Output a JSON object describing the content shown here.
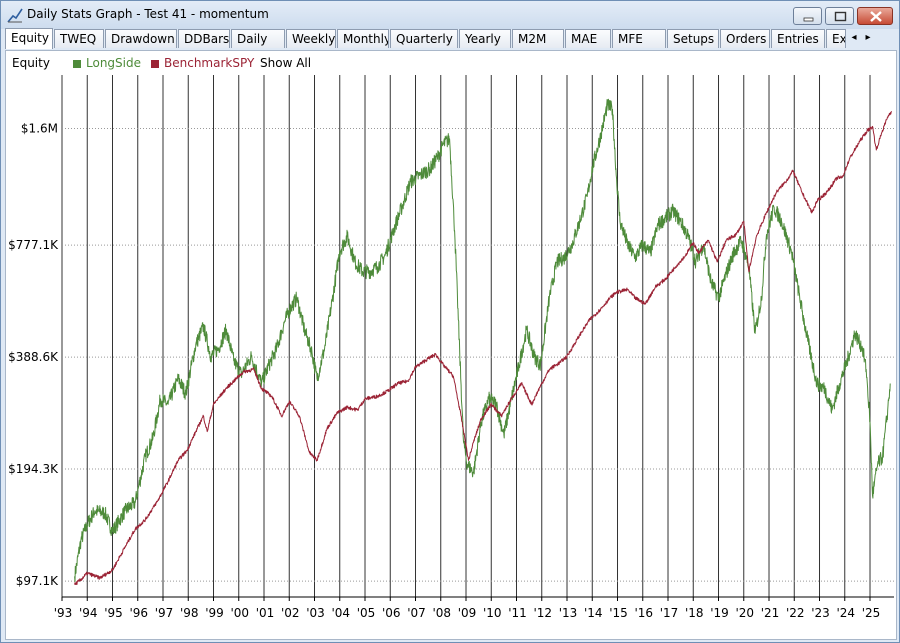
{
  "window": {
    "title": "Daily Stats Graph - Test 41 - momentum",
    "controls": [
      "minimize",
      "maximize",
      "close"
    ]
  },
  "tabs": [
    {
      "label": "Equity",
      "active": true
    },
    {
      "label": "TWEQ"
    },
    {
      "label": "Drawdown"
    },
    {
      "label": "DDBars"
    },
    {
      "label": "Daily"
    },
    {
      "label": "Weekly"
    },
    {
      "label": "Monthly"
    },
    {
      "label": "Quarterly"
    },
    {
      "label": "Yearly"
    },
    {
      "label": "M2M"
    },
    {
      "label": "MAE"
    },
    {
      "label": "MFE"
    },
    {
      "label": "Setups"
    },
    {
      "label": "Orders"
    },
    {
      "label": "Entries"
    },
    {
      "label": "Ex"
    }
  ],
  "tab_scroll": {
    "left": "◂",
    "right": "▸"
  },
  "legend": {
    "title": "Equity",
    "items": [
      {
        "name": "LongSide",
        "color": "#4e8b3a"
      },
      {
        "name": "BenchmarkSPY",
        "color": "#9b2335"
      }
    ],
    "show_all": "Show All"
  },
  "chart_data": {
    "type": "line",
    "scale": "log",
    "grid": {
      "horizontal": "dotted",
      "vertical": "solid yearly"
    },
    "y_ticks": [
      {
        "value": 97100,
        "label": "$97.1K"
      },
      {
        "value": 194300,
        "label": "$194.3K"
      },
      {
        "value": 388600,
        "label": "$388.6K"
      },
      {
        "value": 777100,
        "label": "$777.1K"
      },
      {
        "value": 1600000,
        "label": "$1.6M"
      }
    ],
    "x_ticks": [
      "'93",
      "'94",
      "'95",
      "'96",
      "'97",
      "'98",
      "'99",
      "'00",
      "'01",
      "'02",
      "'03",
      "'04",
      "'05",
      "'06",
      "'07",
      "'08",
      "'09",
      "'10",
      "'11",
      "'12",
      "'13",
      "'14",
      "'15",
      "'16",
      "'17",
      "'18",
      "'19",
      "'20",
      "'21",
      "'22",
      "'23",
      "'24",
      "'25"
    ],
    "x_range": [
      1993.0,
      2025.95
    ],
    "y_range": [
      88000,
      2200000
    ],
    "series": [
      {
        "name": "LongSide",
        "color": "#4e8b3a",
        "points": [
          [
            1993.5,
            100000
          ],
          [
            1993.75,
            125000
          ],
          [
            1994.0,
            138000
          ],
          [
            1994.3,
            150000
          ],
          [
            1994.7,
            148000
          ],
          [
            1995.0,
            132000
          ],
          [
            1995.5,
            150000
          ],
          [
            1995.9,
            158000
          ],
          [
            1996.3,
            210000
          ],
          [
            1996.6,
            235000
          ],
          [
            1996.9,
            300000
          ],
          [
            1997.2,
            290000
          ],
          [
            1997.6,
            340000
          ],
          [
            1997.9,
            310000
          ],
          [
            1998.3,
            420000
          ],
          [
            1998.6,
            470000
          ],
          [
            1998.9,
            390000
          ],
          [
            1999.2,
            410000
          ],
          [
            1999.5,
            460000
          ],
          [
            1999.8,
            380000
          ],
          [
            2000.1,
            350000
          ],
          [
            2000.5,
            390000
          ],
          [
            2000.9,
            330000
          ],
          [
            2001.2,
            370000
          ],
          [
            2001.5,
            410000
          ],
          [
            2001.8,
            480000
          ],
          [
            2002.0,
            520000
          ],
          [
            2002.3,
            560000
          ],
          [
            2002.6,
            460000
          ],
          [
            2002.9,
            400000
          ],
          [
            2003.1,
            340000
          ],
          [
            2003.4,
            410000
          ],
          [
            2003.7,
            550000
          ],
          [
            2004.0,
            750000
          ],
          [
            2004.3,
            820000
          ],
          [
            2004.6,
            700000
          ],
          [
            2004.9,
            660000
          ],
          [
            2005.2,
            660000
          ],
          [
            2005.5,
            680000
          ],
          [
            2005.8,
            730000
          ],
          [
            2006.2,
            880000
          ],
          [
            2006.5,
            1000000
          ],
          [
            2006.8,
            1150000
          ],
          [
            2007.2,
            1200000
          ],
          [
            2007.6,
            1250000
          ],
          [
            2007.9,
            1350000
          ],
          [
            2008.1,
            1450000
          ],
          [
            2008.35,
            1500000
          ],
          [
            2008.55,
            850000
          ],
          [
            2008.75,
            400000
          ],
          [
            2008.9,
            230000
          ],
          [
            2009.05,
            200000
          ],
          [
            2009.3,
            190000
          ],
          [
            2009.6,
            260000
          ],
          [
            2009.9,
            300000
          ],
          [
            2010.2,
            290000
          ],
          [
            2010.5,
            240000
          ],
          [
            2010.8,
            300000
          ],
          [
            2011.1,
            370000
          ],
          [
            2011.4,
            460000
          ],
          [
            2011.7,
            390000
          ],
          [
            2011.95,
            370000
          ],
          [
            2012.3,
            560000
          ],
          [
            2012.6,
            700000
          ],
          [
            2012.9,
            720000
          ],
          [
            2013.2,
            780000
          ],
          [
            2013.5,
            900000
          ],
          [
            2013.8,
            1050000
          ],
          [
            2014.0,
            1250000
          ],
          [
            2014.3,
            1500000
          ],
          [
            2014.6,
            1850000
          ],
          [
            2014.8,
            1800000
          ],
          [
            2014.95,
            1200000
          ],
          [
            2015.1,
            900000
          ],
          [
            2015.4,
            780000
          ],
          [
            2015.7,
            720000
          ],
          [
            2016.0,
            780000
          ],
          [
            2016.3,
            740000
          ],
          [
            2016.6,
            880000
          ],
          [
            2016.9,
            920000
          ],
          [
            2017.2,
            960000
          ],
          [
            2017.5,
            900000
          ],
          [
            2017.8,
            820000
          ],
          [
            2018.1,
            700000
          ],
          [
            2018.4,
            780000
          ],
          [
            2018.7,
            620000
          ],
          [
            2019.0,
            560000
          ],
          [
            2019.3,
            650000
          ],
          [
            2019.6,
            740000
          ],
          [
            2019.9,
            800000
          ],
          [
            2020.2,
            680000
          ],
          [
            2020.45,
            450000
          ],
          [
            2020.7,
            560000
          ],
          [
            2020.9,
            830000
          ],
          [
            2021.2,
            980000
          ],
          [
            2021.5,
            900000
          ],
          [
            2021.9,
            740000
          ],
          [
            2022.1,
            620000
          ],
          [
            2022.4,
            480000
          ],
          [
            2022.7,
            380000
          ],
          [
            2022.9,
            330000
          ],
          [
            2023.2,
            320000
          ],
          [
            2023.5,
            280000
          ],
          [
            2023.8,
            330000
          ],
          [
            2024.1,
            380000
          ],
          [
            2024.4,
            450000
          ],
          [
            2024.7,
            410000
          ],
          [
            2024.85,
            360000
          ],
          [
            2025.0,
            260000
          ],
          [
            2025.1,
            165000
          ],
          [
            2025.3,
            200000
          ],
          [
            2025.5,
            210000
          ],
          [
            2025.7,
            280000
          ],
          [
            2025.8,
            330000
          ]
        ]
      },
      {
        "name": "BenchmarkSPY",
        "color": "#9b2335",
        "points": [
          [
            1993.5,
            95000
          ],
          [
            1993.75,
            98000
          ],
          [
            1994.0,
            102000
          ],
          [
            1994.5,
            99000
          ],
          [
            1995.0,
            104000
          ],
          [
            1995.5,
            120000
          ],
          [
            1995.9,
            134000
          ],
          [
            1996.3,
            142000
          ],
          [
            1996.8,
            160000
          ],
          [
            1997.2,
            180000
          ],
          [
            1997.6,
            205000
          ],
          [
            1997.95,
            218000
          ],
          [
            1998.3,
            245000
          ],
          [
            1998.6,
            270000
          ],
          [
            1998.75,
            245000
          ],
          [
            1999.0,
            290000
          ],
          [
            1999.5,
            320000
          ],
          [
            1999.9,
            340000
          ],
          [
            2000.2,
            355000
          ],
          [
            2000.6,
            360000
          ],
          [
            2000.9,
            320000
          ],
          [
            2001.3,
            305000
          ],
          [
            2001.7,
            270000
          ],
          [
            2002.0,
            295000
          ],
          [
            2002.4,
            270000
          ],
          [
            2002.8,
            215000
          ],
          [
            2003.1,
            205000
          ],
          [
            2003.5,
            250000
          ],
          [
            2003.9,
            275000
          ],
          [
            2004.3,
            285000
          ],
          [
            2004.7,
            280000
          ],
          [
            2005.0,
            300000
          ],
          [
            2005.5,
            305000
          ],
          [
            2005.9,
            315000
          ],
          [
            2006.3,
            330000
          ],
          [
            2006.7,
            335000
          ],
          [
            2007.0,
            365000
          ],
          [
            2007.5,
            385000
          ],
          [
            2007.8,
            395000
          ],
          [
            2008.1,
            370000
          ],
          [
            2008.5,
            345000
          ],
          [
            2008.8,
            270000
          ],
          [
            2009.1,
            205000
          ],
          [
            2009.3,
            230000
          ],
          [
            2009.6,
            265000
          ],
          [
            2010.0,
            290000
          ],
          [
            2010.4,
            270000
          ],
          [
            2010.8,
            300000
          ],
          [
            2011.2,
            330000
          ],
          [
            2011.6,
            290000
          ],
          [
            2011.9,
            320000
          ],
          [
            2012.3,
            360000
          ],
          [
            2012.7,
            375000
          ],
          [
            2013.0,
            390000
          ],
          [
            2013.5,
            445000
          ],
          [
            2013.9,
            490000
          ],
          [
            2014.3,
            520000
          ],
          [
            2014.7,
            560000
          ],
          [
            2014.95,
            580000
          ],
          [
            2015.4,
            590000
          ],
          [
            2015.7,
            560000
          ],
          [
            2016.1,
            540000
          ],
          [
            2016.5,
            600000
          ],
          [
            2016.9,
            630000
          ],
          [
            2017.3,
            680000
          ],
          [
            2017.7,
            730000
          ],
          [
            2018.0,
            790000
          ],
          [
            2018.2,
            740000
          ],
          [
            2018.6,
            800000
          ],
          [
            2018.95,
            700000
          ],
          [
            2019.3,
            800000
          ],
          [
            2019.7,
            830000
          ],
          [
            2020.0,
            900000
          ],
          [
            2020.2,
            660000
          ],
          [
            2020.5,
            820000
          ],
          [
            2020.9,
            950000
          ],
          [
            2021.3,
            1080000
          ],
          [
            2021.7,
            1160000
          ],
          [
            2021.95,
            1230000
          ],
          [
            2022.3,
            1080000
          ],
          [
            2022.7,
            950000
          ],
          [
            2022.9,
            1020000
          ],
          [
            2023.3,
            1080000
          ],
          [
            2023.7,
            1180000
          ],
          [
            2023.9,
            1180000
          ],
          [
            2024.2,
            1330000
          ],
          [
            2024.6,
            1480000
          ],
          [
            2024.9,
            1580000
          ],
          [
            2025.1,
            1620000
          ],
          [
            2025.25,
            1400000
          ],
          [
            2025.45,
            1550000
          ],
          [
            2025.7,
            1720000
          ],
          [
            2025.85,
            1780000
          ]
        ]
      }
    ]
  }
}
